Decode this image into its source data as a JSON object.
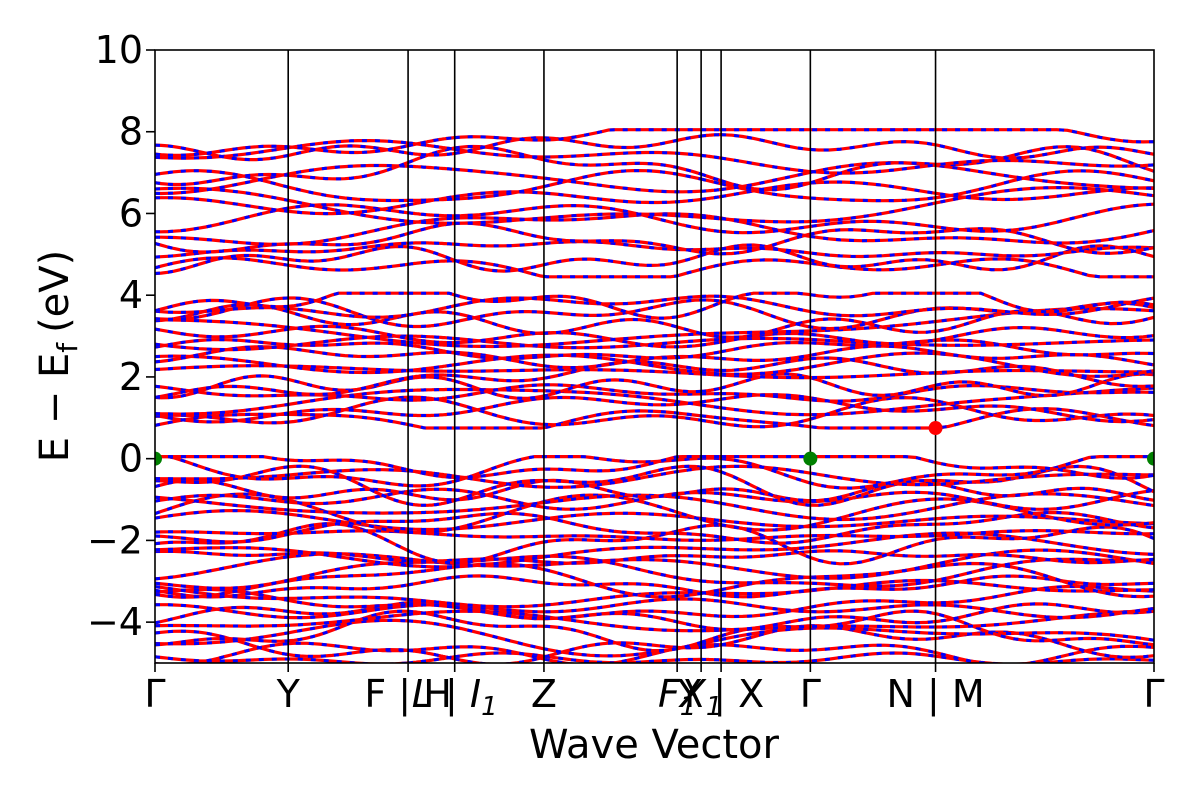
{
  "chart_data": {
    "type": "line",
    "title": "",
    "xlabel": "Wave Vector",
    "ylabel": "E − E",
    "ylabel_sub": "f",
    "ylabel_unit": "(eV)",
    "ylim": [
      -5,
      10
    ],
    "yticks": [
      10,
      8,
      6,
      4,
      2,
      0,
      -2,
      -4
    ],
    "ytick_labels": [
      "10",
      "8",
      "6",
      "4",
      "2",
      "0",
      "−2",
      "−4"
    ],
    "xlim": [
      0,
      7.5
    ],
    "kpath": [
      {
        "x": 0.0,
        "label": "Γ",
        "italic": false
      },
      {
        "x": 1.0,
        "label": "Y",
        "italic": false
      },
      {
        "x": 1.9,
        "label": "F | H",
        "italic": false
      },
      {
        "x": 2.25,
        "label": "L | I",
        "italic": true,
        "sub": "1"
      },
      {
        "x": 2.92,
        "label": "Z",
        "italic": false
      },
      {
        "x": 3.92,
        "label": "F",
        "italic": true,
        "sub": "1"
      },
      {
        "x": 4.1,
        "label": "X",
        "italic": true,
        "sub": "1"
      },
      {
        "x": 4.25,
        "label": "Y | X",
        "italic": false
      },
      {
        "x": 4.92,
        "label": "Γ",
        "italic": false
      },
      {
        "x": 5.86,
        "label": "N | M",
        "italic": false
      },
      {
        "x": 7.5,
        "label": "Γ",
        "italic": false
      }
    ],
    "discontinuities": [
      1.9,
      2.25,
      4.1,
      4.25
    ],
    "series_colors": {
      "spin_up": "#ff0000",
      "spin_down": "#0000ff"
    },
    "band_style": "red solid lines overlaid with blue dashed lines (spin-degenerate bands)",
    "band_windows": {
      "valence": [
        -5.0,
        0.0
      ],
      "conduction_low": [
        0.8,
        4.0
      ],
      "conduction_high": [
        4.5,
        8.0
      ]
    },
    "markers": [
      {
        "x": 0.0,
        "y": 0.0,
        "color": "#008000",
        "meaning": "VBM"
      },
      {
        "x": 4.92,
        "y": 0.0,
        "color": "#008000",
        "meaning": "VBM"
      },
      {
        "x": 7.5,
        "y": 0.0,
        "color": "#008000",
        "meaning": "VBM"
      },
      {
        "x": 5.86,
        "y": 0.75,
        "color": "#ff0000",
        "meaning": "CBM"
      }
    ]
  }
}
